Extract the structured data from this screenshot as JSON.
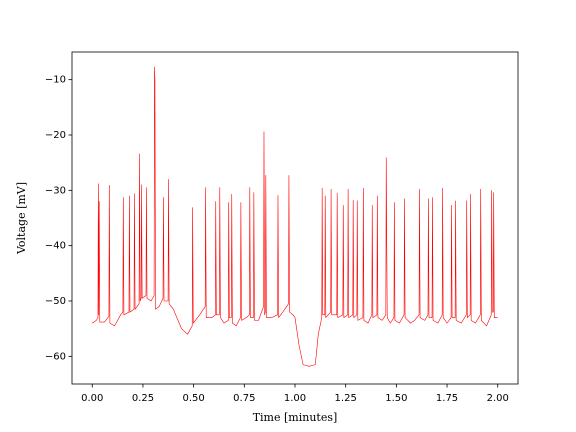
{
  "chart_data": {
    "type": "line",
    "xlabel": "Time [minutes]",
    "ylabel": "Voltage [mV]",
    "xlim": [
      -0.1,
      2.1
    ],
    "ylim": [
      -65,
      -5
    ],
    "xticks": [
      {
        "value": 0,
        "label": "0.00"
      },
      0.25,
      {
        "value": 0.5,
        "label": "0.50"
      },
      0.75,
      {
        "value": 1,
        "label": "1.00"
      },
      1.25,
      {
        "value": 1.5,
        "label": "1.50"
      },
      1.75,
      {
        "value": 2,
        "label": "2.00"
      }
    ],
    "yticks": [
      {
        "value": -60,
        "label": "−60"
      },
      {
        "value": -50,
        "label": "−50"
      },
      {
        "value": -40,
        "label": "−40"
      },
      {
        "value": -30,
        "label": "−30"
      },
      {
        "value": -20,
        "label": "−20"
      },
      {
        "value": -10,
        "label": "−10"
      }
    ],
    "grid": false,
    "x": [
      0.0,
      0.02,
      0.028,
      0.03,
      0.032,
      0.034,
      0.037,
      0.06,
      0.082,
      0.084,
      0.087,
      0.11,
      0.14,
      0.151,
      0.153,
      0.156,
      0.181,
      0.183,
      0.186,
      0.206,
      0.208,
      0.211,
      0.231,
      0.233,
      0.236,
      0.241,
      0.243,
      0.246,
      0.265,
      0.267,
      0.27,
      0.29,
      0.305,
      0.307,
      0.309,
      0.312,
      0.33,
      0.349,
      0.351,
      0.354,
      0.374,
      0.376,
      0.379,
      0.4,
      0.44,
      0.47,
      0.493,
      0.495,
      0.498,
      0.53,
      0.557,
      0.559,
      0.562,
      0.59,
      0.607,
      0.609,
      0.612,
      0.627,
      0.629,
      0.632,
      0.65,
      0.671,
      0.673,
      0.676,
      0.686,
      0.688,
      0.691,
      0.71,
      0.731,
      0.733,
      0.736,
      0.76,
      0.775,
      0.777,
      0.78,
      0.795,
      0.797,
      0.8,
      0.82,
      0.845,
      0.847,
      0.85,
      0.854,
      0.856,
      0.859,
      0.885,
      0.914,
      0.916,
      0.919,
      0.94,
      0.968,
      0.97,
      0.973,
      0.99,
      1.0,
      1.02,
      1.04,
      1.07,
      1.1,
      1.115,
      1.132,
      1.134,
      1.137,
      1.147,
      1.149,
      1.152,
      1.176,
      1.178,
      1.181,
      1.206,
      1.208,
      1.211,
      1.236,
      1.238,
      1.241,
      1.26,
      1.262,
      1.265,
      1.285,
      1.287,
      1.29,
      1.305,
      1.307,
      1.31,
      1.335,
      1.337,
      1.34,
      1.36,
      1.379,
      1.381,
      1.384,
      1.404,
      1.406,
      1.409,
      1.43,
      1.448,
      1.45,
      1.452,
      1.455,
      1.47,
      1.488,
      1.49,
      1.493,
      1.515,
      1.538,
      1.54,
      1.543,
      1.57,
      1.59,
      1.612,
      1.614,
      1.617,
      1.64,
      1.656,
      1.658,
      1.661,
      1.676,
      1.678,
      1.681,
      1.705,
      1.726,
      1.728,
      1.731,
      1.75,
      1.77,
      1.772,
      1.775,
      1.79,
      1.792,
      1.795,
      1.82,
      1.845,
      1.847,
      1.85,
      1.864,
      1.866,
      1.869,
      1.89,
      1.914,
      1.916,
      1.919,
      1.945,
      1.968,
      1.97,
      1.973,
      1.978,
      1.98,
      1.983,
      2.0
    ],
    "series": [
      {
        "color": "#ff0000",
        "values": [
          -54.0,
          -53.5,
          -53.0,
          -28.8,
          -52.5,
          -32.0,
          -53.8,
          -53.8,
          -52.8,
          -29.1,
          -54.0,
          -54.5,
          -52.5,
          -52.0,
          -31.3,
          -52.5,
          -52.0,
          -31.0,
          -52.0,
          -51.5,
          -30.6,
          -51.5,
          -50.5,
          -23.4,
          -50.0,
          -49.5,
          -29.0,
          -49.5,
          -49.0,
          -29.5,
          -49.5,
          -50.0,
          -49.0,
          -7.7,
          -10.0,
          -51.5,
          -51.0,
          -49.5,
          -31.3,
          -50.0,
          -50.0,
          -28.0,
          -50.5,
          -51.5,
          -55.0,
          -56.0,
          -54.5,
          -33.1,
          -54.0,
          -52.5,
          -51.0,
          -29.5,
          -53.0,
          -53.0,
          -52.5,
          -32.0,
          -52.5,
          -52.5,
          -29.5,
          -53.0,
          -54.0,
          -53.5,
          -32.2,
          -53.0,
          -53.0,
          -30.7,
          -54.0,
          -54.5,
          -53.0,
          -32.2,
          -53.5,
          -53.0,
          -52.5,
          -29.5,
          -53.0,
          -53.0,
          -30.4,
          -53.5,
          -53.5,
          -51.0,
          -19.4,
          -52.5,
          -52.0,
          -27.3,
          -53.0,
          -53.0,
          -52.5,
          -30.9,
          -53.0,
          -52.0,
          -50.5,
          -27.3,
          -52.0,
          -52.5,
          -53.0,
          -58.0,
          -61.5,
          -61.8,
          -61.5,
          -56.0,
          -53.0,
          -29.6,
          -52.5,
          -52.5,
          -31.0,
          -53.0,
          -52.0,
          -29.8,
          -52.5,
          -52.5,
          -30.5,
          -53.0,
          -52.5,
          -32.7,
          -53.0,
          -52.5,
          -29.8,
          -53.0,
          -52.5,
          -31.8,
          -53.0,
          -52.5,
          -31.9,
          -53.5,
          -53.0,
          -29.6,
          -53.5,
          -54.0,
          -52.5,
          -32.7,
          -53.0,
          -52.5,
          -31.0,
          -53.0,
          -53.5,
          -52.5,
          -24.1,
          -37.0,
          -53.0,
          -54.0,
          -53.0,
          -32.2,
          -53.5,
          -54.0,
          -52.5,
          -31.5,
          -53.0,
          -54.0,
          -53.5,
          -52.5,
          -29.8,
          -53.0,
          -53.5,
          -52.5,
          -31.5,
          -53.0,
          -53.0,
          -31.3,
          -53.5,
          -54.0,
          -52.5,
          -29.6,
          -53.0,
          -54.0,
          -53.0,
          -32.7,
          -53.0,
          -53.0,
          -31.9,
          -53.5,
          -54.0,
          -52.5,
          -31.9,
          -53.0,
          -52.5,
          -30.7,
          -53.5,
          -54.0,
          -52.5,
          -29.8,
          -53.5,
          -54.5,
          -52.5,
          -30.0,
          -52.0,
          -52.0,
          -30.4,
          -53.0,
          -53.0
        ]
      }
    ]
  }
}
